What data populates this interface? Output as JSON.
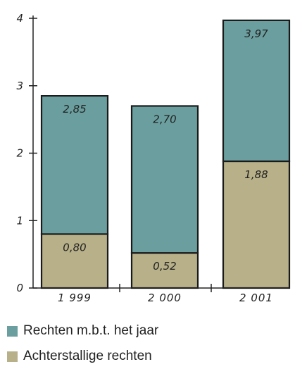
{
  "chart_data": {
    "type": "bar",
    "stacked": true,
    "categories": [
      "1 999",
      "2 000",
      "2 001"
    ],
    "series": [
      {
        "name": "Achterstallige rechten",
        "color": "#b7b089",
        "values": [
          0.8,
          0.52,
          1.88
        ],
        "labels": [
          "0,80",
          "0,52",
          "1,88"
        ]
      },
      {
        "name": "Rechten m.b.t. het jaar",
        "color": "#6b9f9f",
        "values": [
          2.05,
          2.18,
          2.09
        ],
        "labels": [
          "2,85",
          "2,70",
          "3,97"
        ]
      }
    ],
    "yticks": [
      0,
      1,
      2,
      3,
      4
    ],
    "ytick_labels": [
      "0",
      "1",
      "2",
      "3",
      "4"
    ],
    "ylim": [
      0,
      4
    ],
    "title": "",
    "xlabel": "",
    "ylabel": "",
    "legend_position": "bottom-left"
  },
  "legend": [
    {
      "label": "Rechten m.b.t. het jaar",
      "color": "#6b9f9f"
    },
    {
      "label": "Achterstallige rechten",
      "color": "#b7b089"
    }
  ]
}
